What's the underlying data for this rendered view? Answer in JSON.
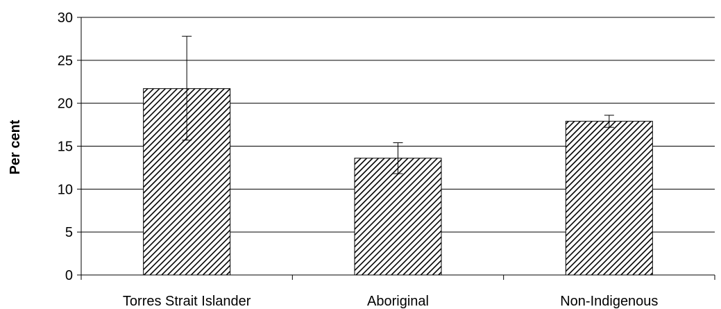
{
  "chart_data": {
    "type": "bar",
    "title": "",
    "xlabel": "",
    "ylabel": "Per cent",
    "categories": [
      "Torres Strait Islander",
      "Aboriginal",
      "Non-Indigenous"
    ],
    "values": [
      21.7,
      13.6,
      17.9
    ],
    "error_bars": [
      {
        "low": 15.7,
        "high": 27.8
      },
      {
        "low": 11.8,
        "high": 15.4
      },
      {
        "low": 17.2,
        "high": 18.6
      }
    ],
    "ylim": [
      0,
      30
    ],
    "yticks": [
      "0",
      "5",
      "10",
      "15",
      "20",
      "25",
      "30"
    ],
    "grid": true,
    "bar_fill": "diagonal-hatch",
    "colors": {
      "bar_stroke": "#000000",
      "hatch": "#000000",
      "grid": "#000000",
      "background": "#ffffff"
    }
  }
}
